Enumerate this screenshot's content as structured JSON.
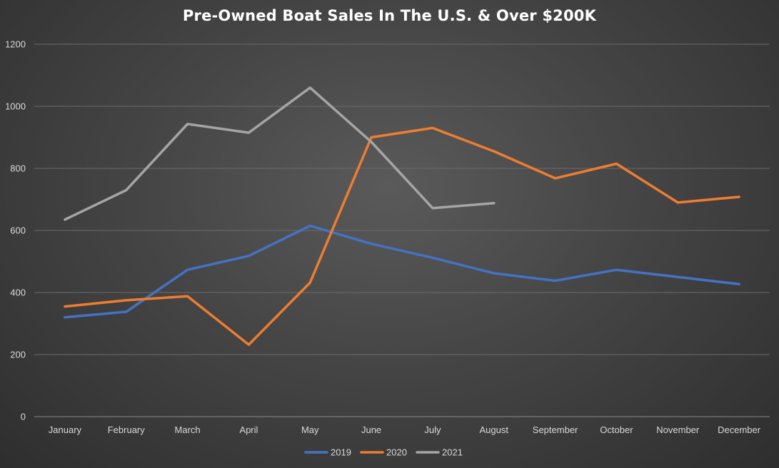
{
  "chart_data": {
    "type": "line",
    "title": "Pre-Owned Boat Sales In The U.S. & Over $200K",
    "xlabel": "",
    "ylabel": "",
    "categories": [
      "January",
      "February",
      "March",
      "April",
      "May",
      "June",
      "July",
      "August",
      "September",
      "October",
      "November",
      "December"
    ],
    "yticks": [
      "0",
      "200",
      "400",
      "600",
      "800",
      "1000",
      "1200"
    ],
    "ylim": [
      0,
      1200
    ],
    "grid": true,
    "legend_position": "bottom",
    "series": [
      {
        "name": "2019",
        "color": "#4472c4",
        "values": [
          320,
          338,
          473,
          518,
          615,
          557,
          512,
          462,
          438,
          473,
          450,
          427
        ]
      },
      {
        "name": "2020",
        "color": "#ed7d31",
        "values": [
          355,
          375,
          388,
          232,
          432,
          900,
          930,
          855,
          768,
          815,
          690,
          708
        ]
      },
      {
        "name": "2021",
        "color": "#a5a5a5",
        "values": [
          635,
          730,
          943,
          915,
          1060,
          885,
          672,
          688,
          null,
          null,
          null,
          null
        ]
      }
    ]
  }
}
